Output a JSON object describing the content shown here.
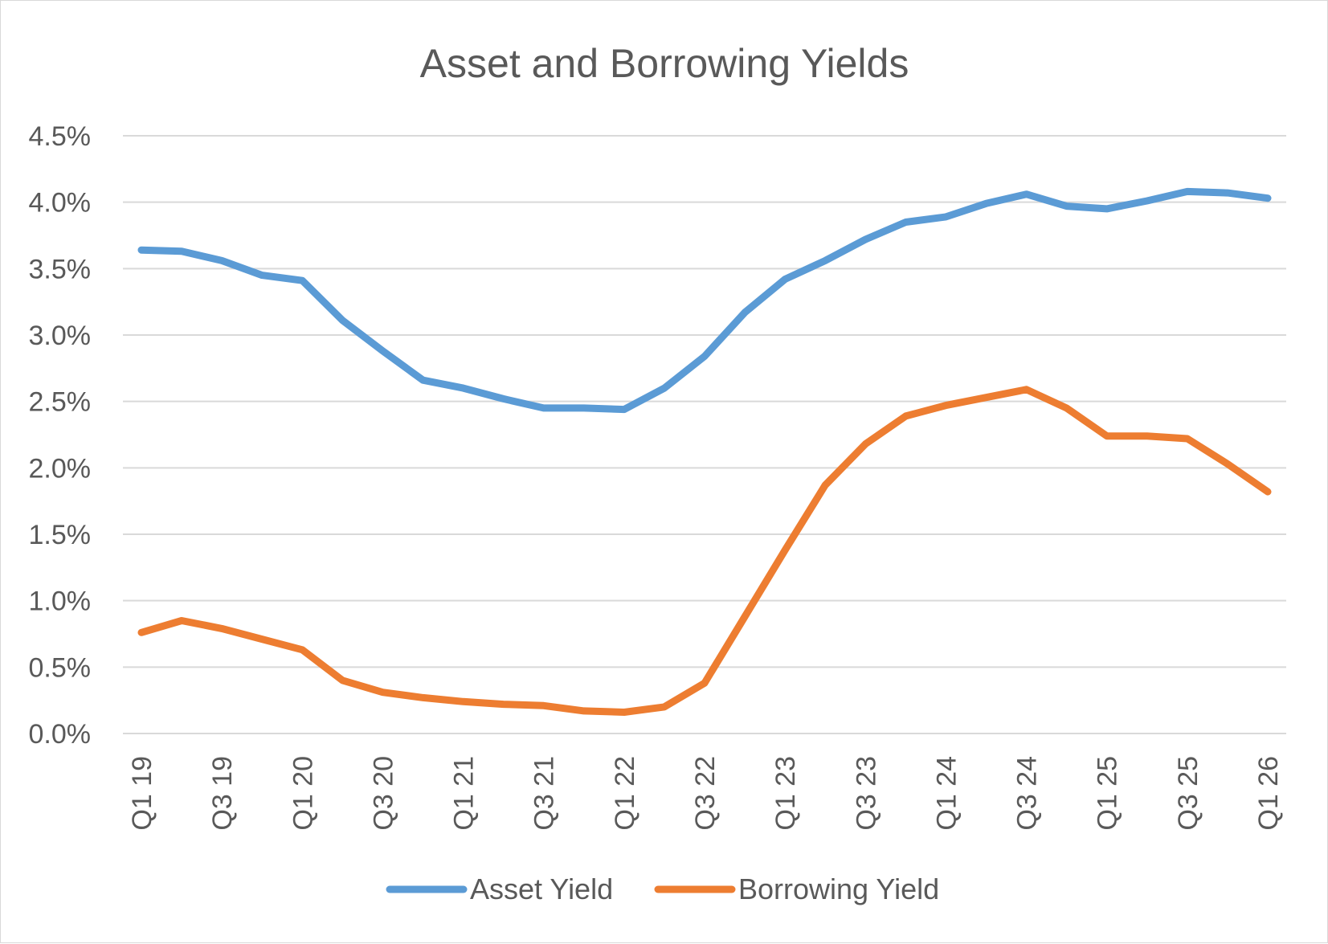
{
  "chart_data": {
    "type": "line",
    "title": "Asset and Borrowing Yields",
    "xlabel": "",
    "ylabel": "",
    "ylim": [
      0,
      4.5
    ],
    "y_ticks": [
      "0.0%",
      "0.5%",
      "1.0%",
      "1.5%",
      "2.0%",
      "2.5%",
      "3.0%",
      "3.5%",
      "4.0%",
      "4.5%"
    ],
    "y_tick_values": [
      0,
      0.5,
      1.0,
      1.5,
      2.0,
      2.5,
      3.0,
      3.5,
      4.0,
      4.5
    ],
    "categories": [
      "Q1 19",
      "Q2 19",
      "Q3 19",
      "Q4 19",
      "Q1 20",
      "Q2 20",
      "Q3 20",
      "Q4 20",
      "Q1 21",
      "Q2 21",
      "Q3 21",
      "Q4 21",
      "Q1 22",
      "Q2 22",
      "Q3 22",
      "Q4 22",
      "Q1 23",
      "Q2 23",
      "Q3 23",
      "Q4 23",
      "Q1 24",
      "Q2 24",
      "Q3 24",
      "Q4 24",
      "Q1 25",
      "Q2 25",
      "Q3 25",
      "Q4 25",
      "Q1 26"
    ],
    "x_tick_labels": [
      "Q1 19",
      "Q3 19",
      "Q1 20",
      "Q3 20",
      "Q1 21",
      "Q3 21",
      "Q1 22",
      "Q3 22",
      "Q1 23",
      "Q3 23",
      "Q1 24",
      "Q3 24",
      "Q1 25",
      "Q3 25",
      "Q1 26"
    ],
    "grid": true,
    "legend": "bottom",
    "series": [
      {
        "name": "Asset Yield",
        "color": "#5b9bd5",
        "values": [
          3.64,
          3.63,
          3.56,
          3.45,
          3.41,
          3.11,
          2.88,
          2.66,
          2.6,
          2.52,
          2.45,
          2.45,
          2.44,
          2.6,
          2.84,
          3.17,
          3.42,
          3.56,
          3.72,
          3.85,
          3.89,
          3.99,
          4.06,
          3.97,
          3.95,
          4.01,
          4.08,
          4.07,
          4.03
        ]
      },
      {
        "name": "Borrowing Yield",
        "color": "#ed7d31",
        "values": [
          0.76,
          0.85,
          0.79,
          0.71,
          0.63,
          0.4,
          0.31,
          0.27,
          0.24,
          0.22,
          0.21,
          0.17,
          0.16,
          0.2,
          0.38,
          0.88,
          1.38,
          1.87,
          2.18,
          2.39,
          2.47,
          2.53,
          2.59,
          2.45,
          2.24,
          2.24,
          2.22,
          2.03,
          1.82
        ]
      }
    ]
  }
}
